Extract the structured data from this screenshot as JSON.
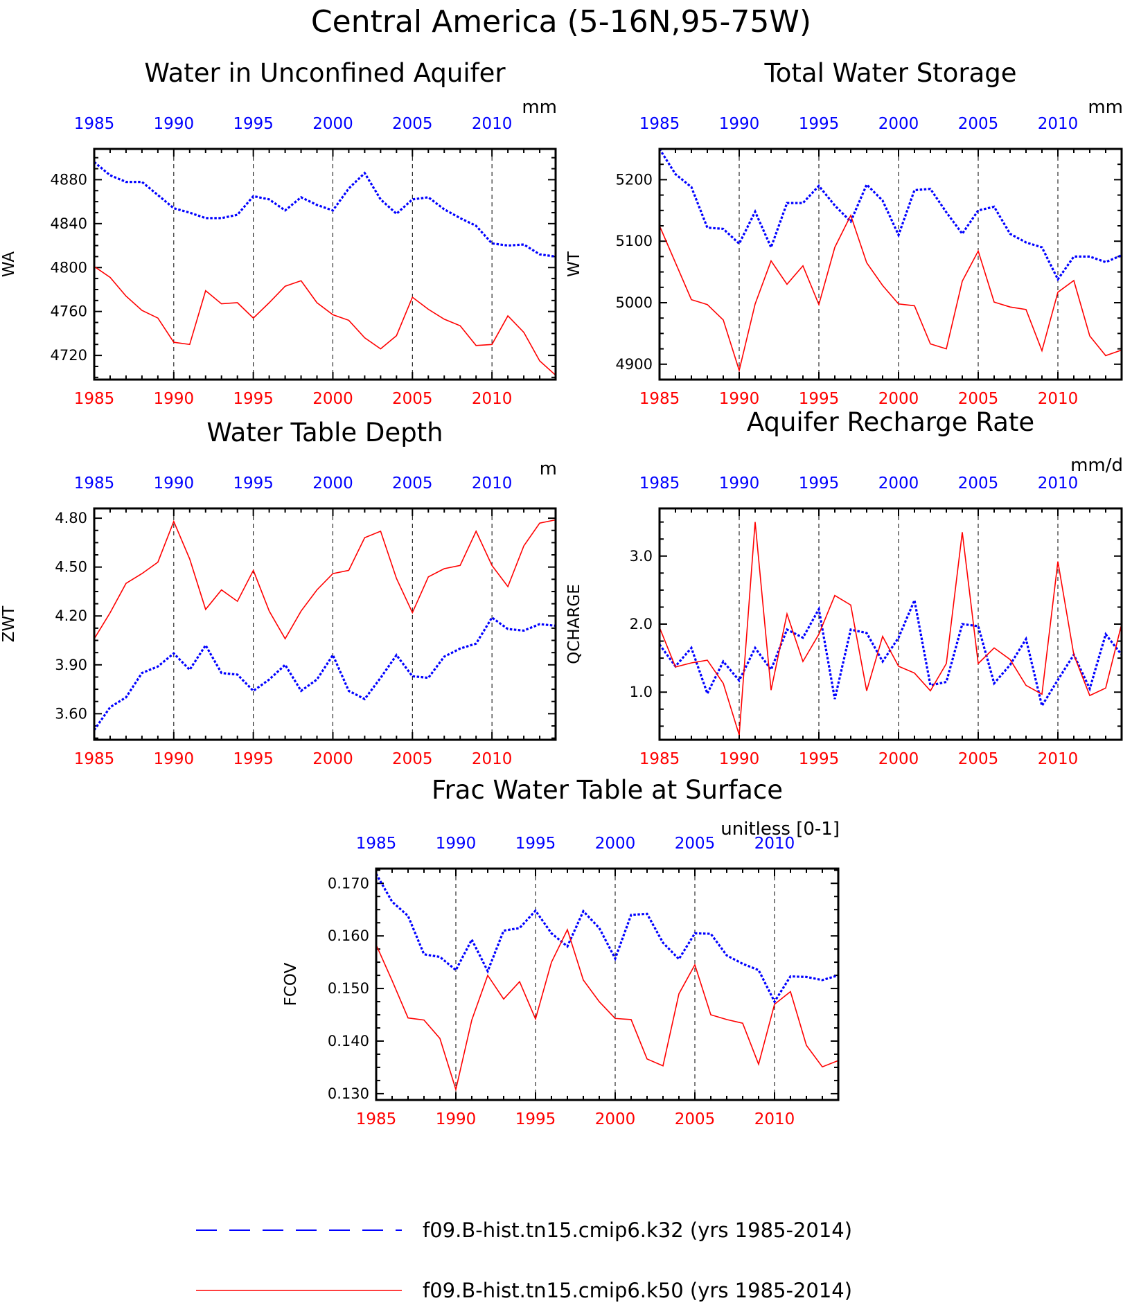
{
  "title": "Central America (5-16N,95-75W)",
  "colors": {
    "k32": "#0000ff",
    "k50": "#ff0000",
    "axis": "#000000"
  },
  "legend": [
    {
      "label": "f09.B-hist.tn15.cmip6.k32 (yrs 1985-2014)",
      "color": "#0000ff",
      "style": "dashed"
    },
    {
      "label": "f09.B-hist.tn15.cmip6.k50 (yrs 1985-2014)",
      "color": "#ff0000",
      "style": "solid"
    }
  ],
  "chart_data": [
    {
      "type": "line",
      "title": "Water in Unconfined Aquifer",
      "units": "mm",
      "ylabel": "WA",
      "xlim": [
        1985,
        2014
      ],
      "ylim": [
        4698,
        4908
      ],
      "yticks": [
        "4720",
        "4760",
        "4800",
        "4840",
        "4880"
      ],
      "ytick_values": [
        4720,
        4760,
        4800,
        4840,
        4880
      ],
      "xticks": [
        "1985",
        "1990",
        "1995",
        "2000",
        "2005",
        "2010"
      ],
      "grid": "dashed vertical at 5-year ticks",
      "x": [
        1985,
        1986,
        1987,
        1988,
        1989,
        1990,
        1991,
        1992,
        1993,
        1994,
        1995,
        1996,
        1997,
        1998,
        1999,
        2000,
        2001,
        2002,
        2003,
        2004,
        2005,
        2006,
        2007,
        2008,
        2009,
        2010,
        2011,
        2012,
        2013,
        2014
      ],
      "series": [
        {
          "name": "f09.B-hist.tn15.cmip6.k32 (yrs 1985-2014)",
          "color": "#0000ff",
          "style": "dashed",
          "values": [
            4896,
            4884,
            4878,
            4878,
            4866,
            4854,
            4850,
            4845,
            4845,
            4848,
            4865,
            4862,
            4852,
            4864,
            4857,
            4852,
            4872,
            4886,
            4862,
            4849,
            4862,
            4864,
            4853,
            4845,
            4838,
            4822,
            4820,
            4821,
            4812,
            4810
          ]
        },
        {
          "name": "f09.B-hist.tn15.cmip6.k50 (yrs 1985-2014)",
          "color": "#ff0000",
          "style": "solid",
          "values": [
            4801,
            4791,
            4774,
            4761,
            4754,
            4732,
            4730,
            4779,
            4767,
            4768,
            4754,
            4768,
            4783,
            4788,
            4768,
            4757,
            4752,
            4736,
            4726,
            4738,
            4773,
            4762,
            4753,
            4747,
            4729,
            4730,
            4756,
            4741,
            4715,
            4702
          ]
        }
      ]
    },
    {
      "type": "line",
      "title": "Total Water Storage",
      "units": "mm",
      "ylabel": "WT",
      "xlim": [
        1985,
        2014
      ],
      "ylim": [
        4875,
        5250
      ],
      "yticks": [
        "4900",
        "5000",
        "5100",
        "5200"
      ],
      "ytick_values": [
        4900,
        5000,
        5100,
        5200
      ],
      "xticks": [
        "1985",
        "1990",
        "1995",
        "2000",
        "2005",
        "2010"
      ],
      "grid": "dashed vertical at 5-year ticks",
      "x": [
        1985,
        1986,
        1987,
        1988,
        1989,
        1990,
        1991,
        1992,
        1993,
        1994,
        1995,
        1996,
        1997,
        1998,
        1999,
        2000,
        2001,
        2002,
        2003,
        2004,
        2005,
        2006,
        2007,
        2008,
        2009,
        2010,
        2011,
        2012,
        2013,
        2014
      ],
      "series": [
        {
          "name": "f09.B-hist.tn15.cmip6.k32 (yrs 1985-2014)",
          "color": "#0000ff",
          "style": "dashed",
          "values": [
            5250,
            5209,
            5188,
            5122,
            5120,
            5096,
            5148,
            5090,
            5162,
            5162,
            5190,
            5158,
            5132,
            5192,
            5166,
            5110,
            5183,
            5185,
            5147,
            5112,
            5150,
            5156,
            5112,
            5098,
            5090,
            5038,
            5075,
            5075,
            5066,
            5077
          ]
        },
        {
          "name": "f09.B-hist.tn15.cmip6.k50 (yrs 1985-2014)",
          "color": "#ff0000",
          "style": "solid",
          "values": [
            5125,
            5065,
            5005,
            4997,
            4972,
            4890,
            4998,
            5068,
            5030,
            5060,
            4997,
            5090,
            5142,
            5065,
            5028,
            4998,
            4995,
            4933,
            4925,
            5035,
            5084,
            5001,
            4993,
            4989,
            4922,
            5017,
            5036,
            4946,
            4914,
            4923
          ]
        }
      ]
    },
    {
      "type": "line",
      "title": "Water Table Depth",
      "units": "m",
      "ylabel": "ZWT",
      "xlim": [
        1985,
        2014
      ],
      "ylim": [
        3.44,
        4.86
      ],
      "yticks": [
        "3.60",
        "3.90",
        "4.20",
        "4.50",
        "4.80"
      ],
      "ytick_values": [
        3.6,
        3.9,
        4.2,
        4.5,
        4.8
      ],
      "xticks": [
        "1985",
        "1990",
        "1995",
        "2000",
        "2005",
        "2010"
      ],
      "grid": "dashed vertical at 5-year ticks",
      "x": [
        1985,
        1986,
        1987,
        1988,
        1989,
        1990,
        1991,
        1992,
        1993,
        1994,
        1995,
        1996,
        1997,
        1998,
        1999,
        2000,
        2001,
        2002,
        2003,
        2004,
        2005,
        2006,
        2007,
        2008,
        2009,
        2010,
        2011,
        2012,
        2013,
        2014
      ],
      "series": [
        {
          "name": "f09.B-hist.tn15.cmip6.k32 (yrs 1985-2014)",
          "color": "#0000ff",
          "style": "dashed",
          "values": [
            3.5,
            3.64,
            3.7,
            3.85,
            3.89,
            3.97,
            3.87,
            4.02,
            3.85,
            3.84,
            3.74,
            3.81,
            3.9,
            3.74,
            3.81,
            3.96,
            3.74,
            3.69,
            3.82,
            3.96,
            3.83,
            3.82,
            3.95,
            4.0,
            4.03,
            4.19,
            4.12,
            4.11,
            4.15,
            4.14
          ]
        },
        {
          "name": "f09.B-hist.tn15.cmip6.k50 (yrs 1985-2014)",
          "color": "#ff0000",
          "style": "solid",
          "values": [
            4.06,
            4.22,
            4.4,
            4.46,
            4.53,
            4.78,
            4.55,
            4.24,
            4.36,
            4.29,
            4.48,
            4.23,
            4.06,
            4.23,
            4.36,
            4.46,
            4.48,
            4.68,
            4.72,
            4.43,
            4.22,
            4.44,
            4.49,
            4.51,
            4.72,
            4.51,
            4.38,
            4.63,
            4.77,
            4.79
          ]
        }
      ]
    },
    {
      "type": "line",
      "title": "Aquifer Recharge Rate",
      "units": "mm/d",
      "ylabel": "QCHARGE",
      "xlim": [
        1985,
        2014
      ],
      "ylim": [
        0.3,
        3.7
      ],
      "yticks": [
        "1.0",
        "2.0",
        "3.0"
      ],
      "ytick_values": [
        1.0,
        2.0,
        3.0
      ],
      "xticks": [
        "1985",
        "1990",
        "1995",
        "2000",
        "2005",
        "2010"
      ],
      "grid": "dashed vertical at 5-year ticks",
      "x": [
        1985,
        1986,
        1987,
        1988,
        1989,
        1990,
        1991,
        1992,
        1993,
        1994,
        1995,
        1996,
        1997,
        1998,
        1999,
        2000,
        2001,
        2002,
        2003,
        2004,
        2005,
        2006,
        2007,
        2008,
        2009,
        2010,
        2011,
        2012,
        2013,
        2014
      ],
      "series": [
        {
          "name": "f09.B-hist.tn15.cmip6.k32 (yrs 1985-2014)",
          "color": "#0000ff",
          "style": "dashed",
          "values": [
            1.7,
            1.38,
            1.65,
            0.98,
            1.45,
            1.17,
            1.65,
            1.33,
            1.92,
            1.8,
            2.22,
            0.9,
            1.92,
            1.87,
            1.45,
            1.8,
            2.35,
            1.1,
            1.15,
            2.0,
            1.97,
            1.13,
            1.4,
            1.78,
            0.8,
            1.18,
            1.55,
            1.05,
            1.85,
            1.55
          ]
        },
        {
          "name": "f09.B-hist.tn15.cmip6.k50 (yrs 1985-2014)",
          "color": "#ff0000",
          "style": "solid",
          "values": [
            1.95,
            1.37,
            1.43,
            1.47,
            1.13,
            0.37,
            3.5,
            1.03,
            2.15,
            1.45,
            1.85,
            2.42,
            2.28,
            1.02,
            1.82,
            1.38,
            1.28,
            1.02,
            1.42,
            3.35,
            1.42,
            1.65,
            1.48,
            1.1,
            0.97,
            2.92,
            1.55,
            0.95,
            1.06,
            2.0
          ]
        }
      ]
    },
    {
      "type": "line",
      "title": "Frac Water Table at Surface",
      "units": "unitless [0-1]",
      "ylabel": "FCOV",
      "xlim": [
        1985,
        2014
      ],
      "ylim": [
        0.1288,
        0.1728
      ],
      "yticks": [
        "0.130",
        "0.140",
        "0.150",
        "0.160",
        "0.170"
      ],
      "ytick_values": [
        0.13,
        0.14,
        0.15,
        0.16,
        0.17
      ],
      "xticks": [
        "1985",
        "1990",
        "1995",
        "2000",
        "2005",
        "2010"
      ],
      "grid": "dashed vertical at 5-year ticks",
      "x": [
        1985,
        1986,
        1987,
        1988,
        1989,
        1990,
        1991,
        1992,
        1993,
        1994,
        1995,
        1996,
        1997,
        1998,
        1999,
        2000,
        2001,
        2002,
        2003,
        2004,
        2005,
        2006,
        2007,
        2008,
        2009,
        2010,
        2011,
        2012,
        2013,
        2014
      ],
      "series": [
        {
          "name": "f09.B-hist.tn15.cmip6.k32 (yrs 1985-2014)",
          "color": "#0000ff",
          "style": "dashed",
          "values": [
            0.1718,
            0.1665,
            0.1638,
            0.1565,
            0.156,
            0.1535,
            0.1593,
            0.1533,
            0.161,
            0.1615,
            0.1648,
            0.1605,
            0.158,
            0.1647,
            0.1615,
            0.1557,
            0.164,
            0.1642,
            0.1587,
            0.1556,
            0.1605,
            0.1604,
            0.1563,
            0.1547,
            0.1535,
            0.1475,
            0.1523,
            0.1522,
            0.1516,
            0.1525
          ]
        },
        {
          "name": "f09.B-hist.tn15.cmip6.k50 (yrs 1985-2014)",
          "color": "#ff0000",
          "style": "solid",
          "values": [
            0.1583,
            0.1515,
            0.1444,
            0.144,
            0.1405,
            0.1308,
            0.144,
            0.1525,
            0.148,
            0.1513,
            0.1442,
            0.155,
            0.1612,
            0.1516,
            0.1475,
            0.1443,
            0.1441,
            0.1366,
            0.1353,
            0.149,
            0.1545,
            0.145,
            0.1441,
            0.1434,
            0.1356,
            0.147,
            0.1494,
            0.1392,
            0.1351,
            0.1363
          ]
        }
      ]
    }
  ]
}
